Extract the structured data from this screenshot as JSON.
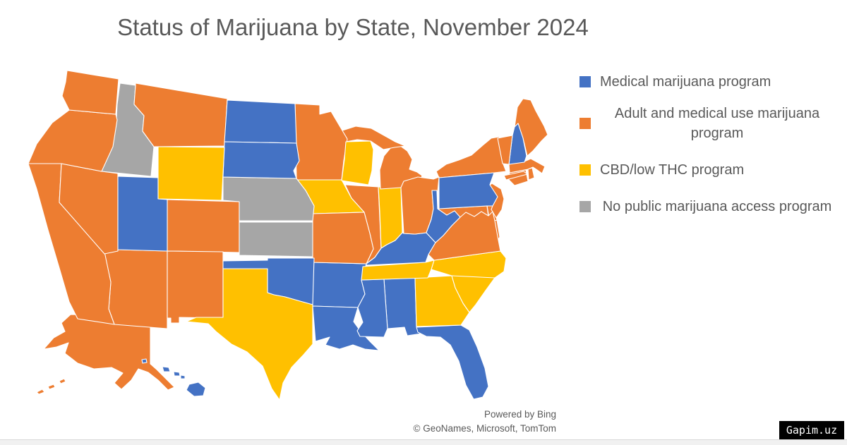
{
  "title": "Status of Marijuana by State, November 2024",
  "legend": {
    "items": [
      {
        "id": "medical",
        "label": "Medical marijuana program",
        "color": "#4472C4"
      },
      {
        "id": "adult_medical",
        "label": "Adult and medical use marijuana program",
        "color": "#ED7D31"
      },
      {
        "id": "cbd",
        "label": "CBD/low THC program",
        "color": "#FFC000"
      },
      {
        "id": "none",
        "label": "No public marijuana access program",
        "color": "#A6A6A6"
      }
    ]
  },
  "attribution": {
    "line1": "Powered by Bing",
    "line2": "© GeoNames, Microsoft, TomTom"
  },
  "watermark": "Gapim.uz",
  "chart_data": {
    "type": "choropleth",
    "title": "Status of Marijuana by State, November 2024",
    "region": "United States",
    "legend_position": "right",
    "statuses": {
      "medical": "Medical marijuana program",
      "adult_medical": "Adult and medical use marijuana program",
      "cbd": "CBD/low THC program",
      "none": "No public marijuana access program"
    },
    "states": [
      {
        "abbr": "AL",
        "name": "Alabama",
        "status": "medical"
      },
      {
        "abbr": "AK",
        "name": "Alaska",
        "status": "adult_medical"
      },
      {
        "abbr": "AZ",
        "name": "Arizona",
        "status": "adult_medical"
      },
      {
        "abbr": "AR",
        "name": "Arkansas",
        "status": "medical"
      },
      {
        "abbr": "CA",
        "name": "California",
        "status": "adult_medical"
      },
      {
        "abbr": "CO",
        "name": "Colorado",
        "status": "adult_medical"
      },
      {
        "abbr": "CT",
        "name": "Connecticut",
        "status": "adult_medical"
      },
      {
        "abbr": "DE",
        "name": "Delaware",
        "status": "adult_medical"
      },
      {
        "abbr": "FL",
        "name": "Florida",
        "status": "medical"
      },
      {
        "abbr": "GA",
        "name": "Georgia",
        "status": "cbd"
      },
      {
        "abbr": "HI",
        "name": "Hawaii",
        "status": "medical"
      },
      {
        "abbr": "ID",
        "name": "Idaho",
        "status": "none"
      },
      {
        "abbr": "IL",
        "name": "Illinois",
        "status": "adult_medical"
      },
      {
        "abbr": "IN",
        "name": "Indiana",
        "status": "cbd"
      },
      {
        "abbr": "IA",
        "name": "Iowa",
        "status": "cbd"
      },
      {
        "abbr": "KS",
        "name": "Kansas",
        "status": "none"
      },
      {
        "abbr": "KY",
        "name": "Kentucky",
        "status": "medical"
      },
      {
        "abbr": "LA",
        "name": "Louisiana",
        "status": "medical"
      },
      {
        "abbr": "ME",
        "name": "Maine",
        "status": "adult_medical"
      },
      {
        "abbr": "MD",
        "name": "Maryland",
        "status": "adult_medical"
      },
      {
        "abbr": "MA",
        "name": "Massachusetts",
        "status": "adult_medical"
      },
      {
        "abbr": "MI",
        "name": "Michigan",
        "status": "adult_medical"
      },
      {
        "abbr": "MN",
        "name": "Minnesota",
        "status": "adult_medical"
      },
      {
        "abbr": "MS",
        "name": "Mississippi",
        "status": "medical"
      },
      {
        "abbr": "MO",
        "name": "Missouri",
        "status": "adult_medical"
      },
      {
        "abbr": "MT",
        "name": "Montana",
        "status": "adult_medical"
      },
      {
        "abbr": "NE",
        "name": "Nebraska",
        "status": "none"
      },
      {
        "abbr": "NV",
        "name": "Nevada",
        "status": "adult_medical"
      },
      {
        "abbr": "NH",
        "name": "New Hampshire",
        "status": "medical"
      },
      {
        "abbr": "NJ",
        "name": "New Jersey",
        "status": "adult_medical"
      },
      {
        "abbr": "NM",
        "name": "New Mexico",
        "status": "adult_medical"
      },
      {
        "abbr": "NY",
        "name": "New York",
        "status": "adult_medical"
      },
      {
        "abbr": "NC",
        "name": "North Carolina",
        "status": "cbd"
      },
      {
        "abbr": "ND",
        "name": "North Dakota",
        "status": "medical"
      },
      {
        "abbr": "OH",
        "name": "Ohio",
        "status": "adult_medical"
      },
      {
        "abbr": "OK",
        "name": "Oklahoma",
        "status": "medical"
      },
      {
        "abbr": "OR",
        "name": "Oregon",
        "status": "adult_medical"
      },
      {
        "abbr": "PA",
        "name": "Pennsylvania",
        "status": "medical"
      },
      {
        "abbr": "RI",
        "name": "Rhode Island",
        "status": "adult_medical"
      },
      {
        "abbr": "SC",
        "name": "South Carolina",
        "status": "cbd"
      },
      {
        "abbr": "SD",
        "name": "South Dakota",
        "status": "medical"
      },
      {
        "abbr": "TN",
        "name": "Tennessee",
        "status": "cbd"
      },
      {
        "abbr": "TX",
        "name": "Texas",
        "status": "cbd"
      },
      {
        "abbr": "UT",
        "name": "Utah",
        "status": "medical"
      },
      {
        "abbr": "VT",
        "name": "Vermont",
        "status": "adult_medical"
      },
      {
        "abbr": "VA",
        "name": "Virginia",
        "status": "adult_medical"
      },
      {
        "abbr": "WA",
        "name": "Washington",
        "status": "adult_medical"
      },
      {
        "abbr": "WV",
        "name": "West Virginia",
        "status": "medical"
      },
      {
        "abbr": "WI",
        "name": "Wisconsin",
        "status": "cbd"
      },
      {
        "abbr": "WY",
        "name": "Wyoming",
        "status": "cbd"
      }
    ]
  }
}
